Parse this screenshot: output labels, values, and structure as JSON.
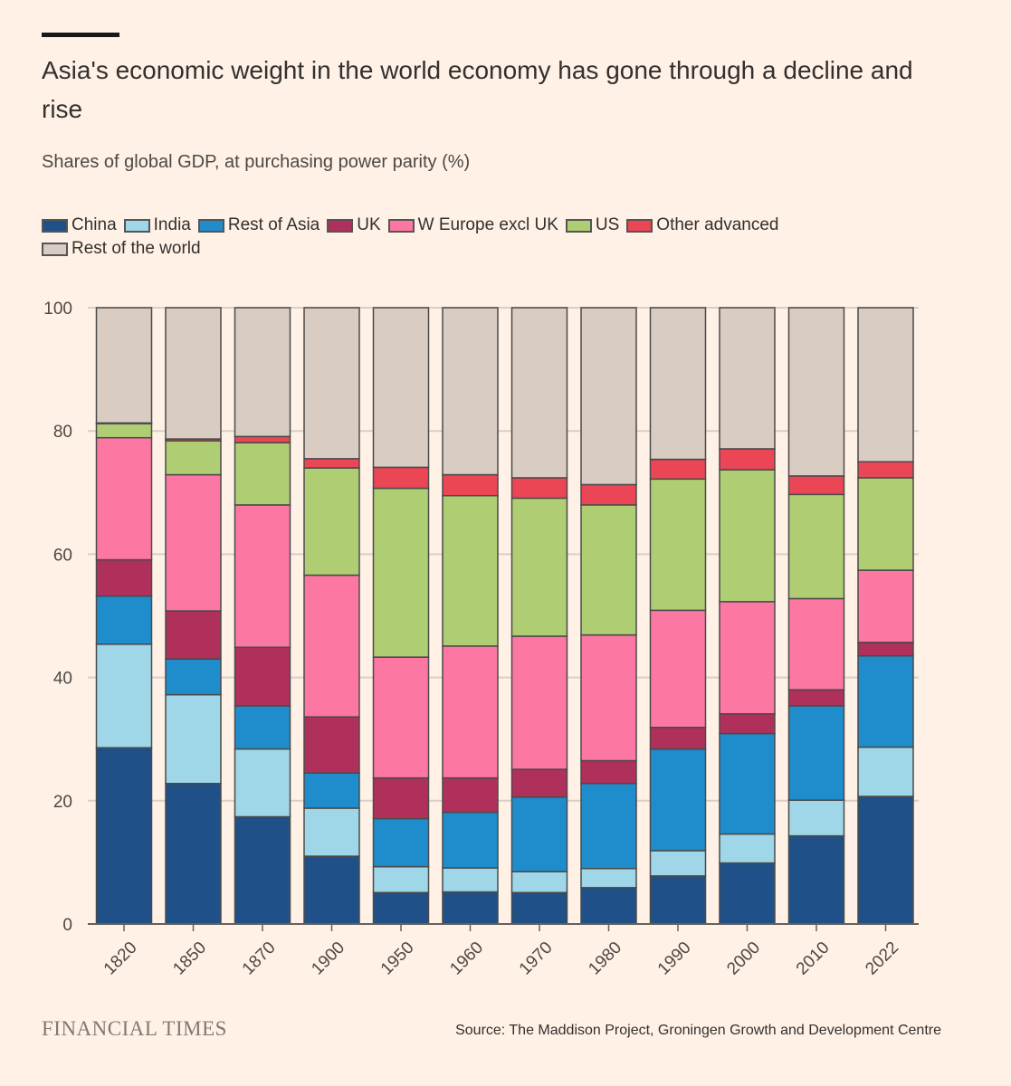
{
  "header": {
    "title": "Asia's economic weight in the world economy has gone through a decline and rise",
    "subtitle": "Shares of global GDP, at purchasing power parity (%)"
  },
  "footer": {
    "brand": "FINANCIAL TIMES",
    "source": "Source: The Maddison Project, Groningen Growth and Development Centre"
  },
  "chart_data": {
    "type": "bar",
    "stacked": true,
    "title": "Asia's economic weight in the world economy has gone through a decline and rise",
    "subtitle": "Shares of global GDP, at purchasing power parity (%)",
    "ylim": [
      0,
      100
    ],
    "yticks": [
      0,
      20,
      40,
      60,
      80,
      100
    ],
    "grid": true,
    "legend_position": "top-left",
    "categories": [
      "1820",
      "1850",
      "1870",
      "1900",
      "1950",
      "1960",
      "1970",
      "1980",
      "1990",
      "2000",
      "2010",
      "2022"
    ],
    "series": [
      {
        "name": "China",
        "color": "#1f5188",
        "values": [
          28.6,
          22.8,
          17.4,
          11.0,
          5.1,
          5.2,
          5.1,
          5.9,
          7.8,
          9.9,
          14.3,
          20.7
        ]
      },
      {
        "name": "India",
        "color": "#9fd6e8",
        "values": [
          16.8,
          14.4,
          11.0,
          7.8,
          4.2,
          3.9,
          3.4,
          3.1,
          4.1,
          4.7,
          5.8,
          8.0
        ]
      },
      {
        "name": "Rest of Asia",
        "color": "#1f8ccc",
        "values": [
          7.8,
          5.8,
          7.0,
          5.7,
          7.8,
          9.0,
          12.1,
          13.8,
          16.5,
          16.3,
          15.3,
          14.8
        ]
      },
      {
        "name": "UK",
        "color": "#b0305c",
        "values": [
          5.9,
          7.8,
          9.5,
          9.1,
          6.6,
          5.6,
          4.5,
          3.7,
          3.5,
          3.2,
          2.6,
          2.2
        ]
      },
      {
        "name": "W Europe excl UK",
        "color": "#fd77a3",
        "values": [
          19.8,
          22.1,
          23.1,
          23.0,
          19.6,
          21.4,
          21.6,
          20.4,
          19.0,
          18.2,
          14.8,
          11.7
        ]
      },
      {
        "name": "US",
        "color": "#afcd72",
        "values": [
          2.3,
          5.5,
          10.1,
          17.4,
          27.4,
          24.4,
          22.4,
          21.1,
          21.3,
          21.4,
          16.9,
          15.0
        ]
      },
      {
        "name": "Other advanced",
        "color": "#eb4655",
        "values": [
          0.1,
          0.3,
          1.0,
          1.5,
          3.4,
          3.4,
          3.3,
          3.3,
          3.2,
          3.4,
          3.0,
          2.6
        ]
      },
      {
        "name": "Rest of the world",
        "color": "#d9ccc3",
        "values": [
          18.7,
          21.3,
          20.9,
          24.5,
          25.9,
          27.1,
          27.6,
          28.7,
          24.6,
          22.9,
          27.3,
          25.0
        ]
      }
    ]
  }
}
